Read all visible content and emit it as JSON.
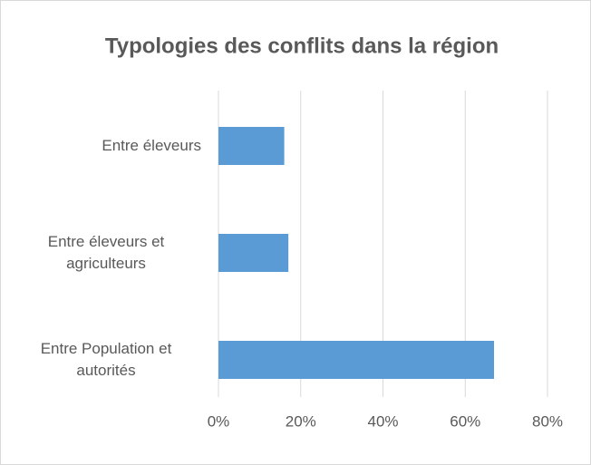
{
  "chart_data": {
    "type": "bar",
    "orientation": "horizontal",
    "title": "Typologies des conflits dans la région",
    "categories": [
      "Entre éleveurs",
      "Entre éleveurs et agriculteurs",
      "Entre Population et autorités"
    ],
    "values": [
      16,
      17,
      67
    ],
    "color": "#5b9bd5",
    "xlim": [
      0,
      80
    ],
    "xticks": [
      {
        "value": 0,
        "label": "0%"
      },
      {
        "value": 20,
        "label": "20%"
      },
      {
        "value": 40,
        "label": "40%"
      },
      {
        "value": 60,
        "label": "60%"
      },
      {
        "value": 80,
        "label": "80%"
      }
    ],
    "grid": true
  }
}
